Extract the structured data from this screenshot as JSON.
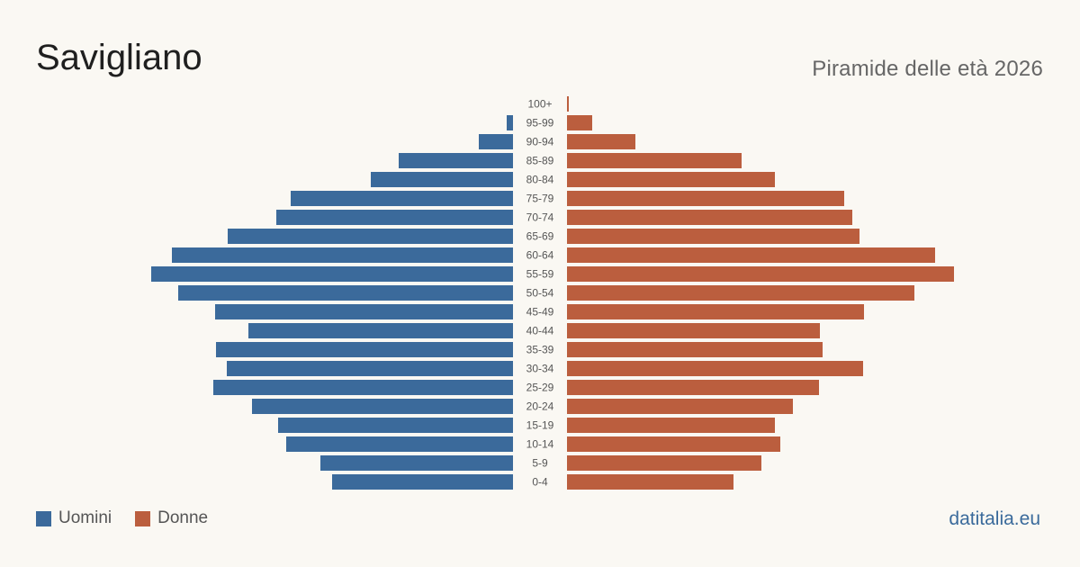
{
  "title": "Savigliano",
  "subtitle": "Piramide delle età 2026",
  "brand": "datitalia.eu",
  "legend": {
    "men": "Uomini",
    "women": "Donne"
  },
  "colors": {
    "men": "#3b6a9b",
    "women": "#bb5e3e",
    "background": "#faf8f3"
  },
  "chart_data": {
    "type": "bar",
    "orientation": "horizontal-pyramid",
    "categories": [
      "100+",
      "95-99",
      "90-94",
      "85-89",
      "80-84",
      "75-79",
      "70-74",
      "65-69",
      "60-64",
      "55-59",
      "50-54",
      "45-49",
      "40-44",
      "35-39",
      "30-34",
      "25-29",
      "20-24",
      "15-19",
      "10-14",
      "5-9",
      "0-4"
    ],
    "series": [
      {
        "name": "Uomini",
        "values": [
          0,
          7,
          38,
          127,
          158,
          247,
          263,
          317,
          379,
          402,
          372,
          331,
          294,
          330,
          318,
          333,
          290,
          261,
          252,
          214,
          201
        ]
      },
      {
        "name": "Donne",
        "values": [
          2,
          28,
          76,
          194,
          231,
          308,
          317,
          325,
          409,
          430,
          386,
          330,
          281,
          284,
          329,
          280,
          251,
          231,
          237,
          216,
          185
        ]
      }
    ],
    "legend": "bottom-left",
    "grid": false
  }
}
